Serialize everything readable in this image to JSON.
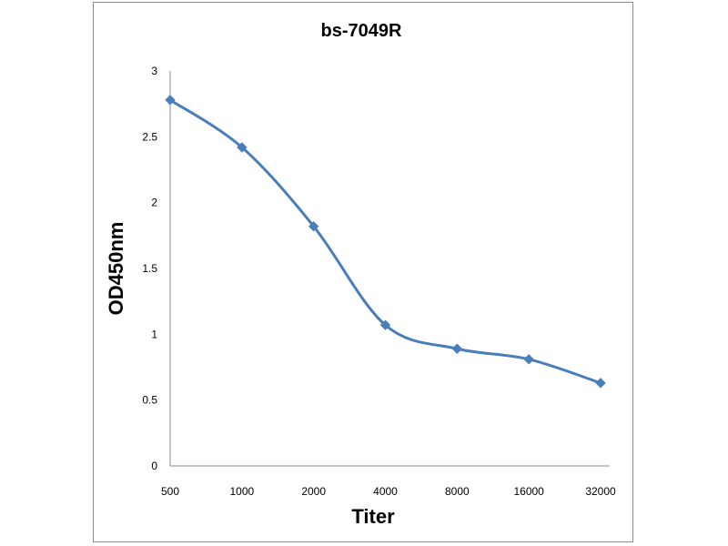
{
  "chart_data": {
    "type": "line",
    "title": "bs-7049R",
    "xlabel": "Titer",
    "ylabel": "OD450nm",
    "categories": [
      "500",
      "1000",
      "2000",
      "4000",
      "8000",
      "16000",
      "32000"
    ],
    "series": [
      {
        "values": [
          2.78,
          2.42,
          1.82,
          1.07,
          0.89,
          0.81,
          0.63
        ]
      }
    ],
    "ylim": [
      0,
      3
    ],
    "yticks": [
      "0",
      "0.5",
      "1",
      "1.5",
      "2",
      "2.5",
      "3"
    ],
    "grid": false,
    "legend": "none",
    "line_color": "#4a7ebb",
    "marker": "diamond"
  }
}
